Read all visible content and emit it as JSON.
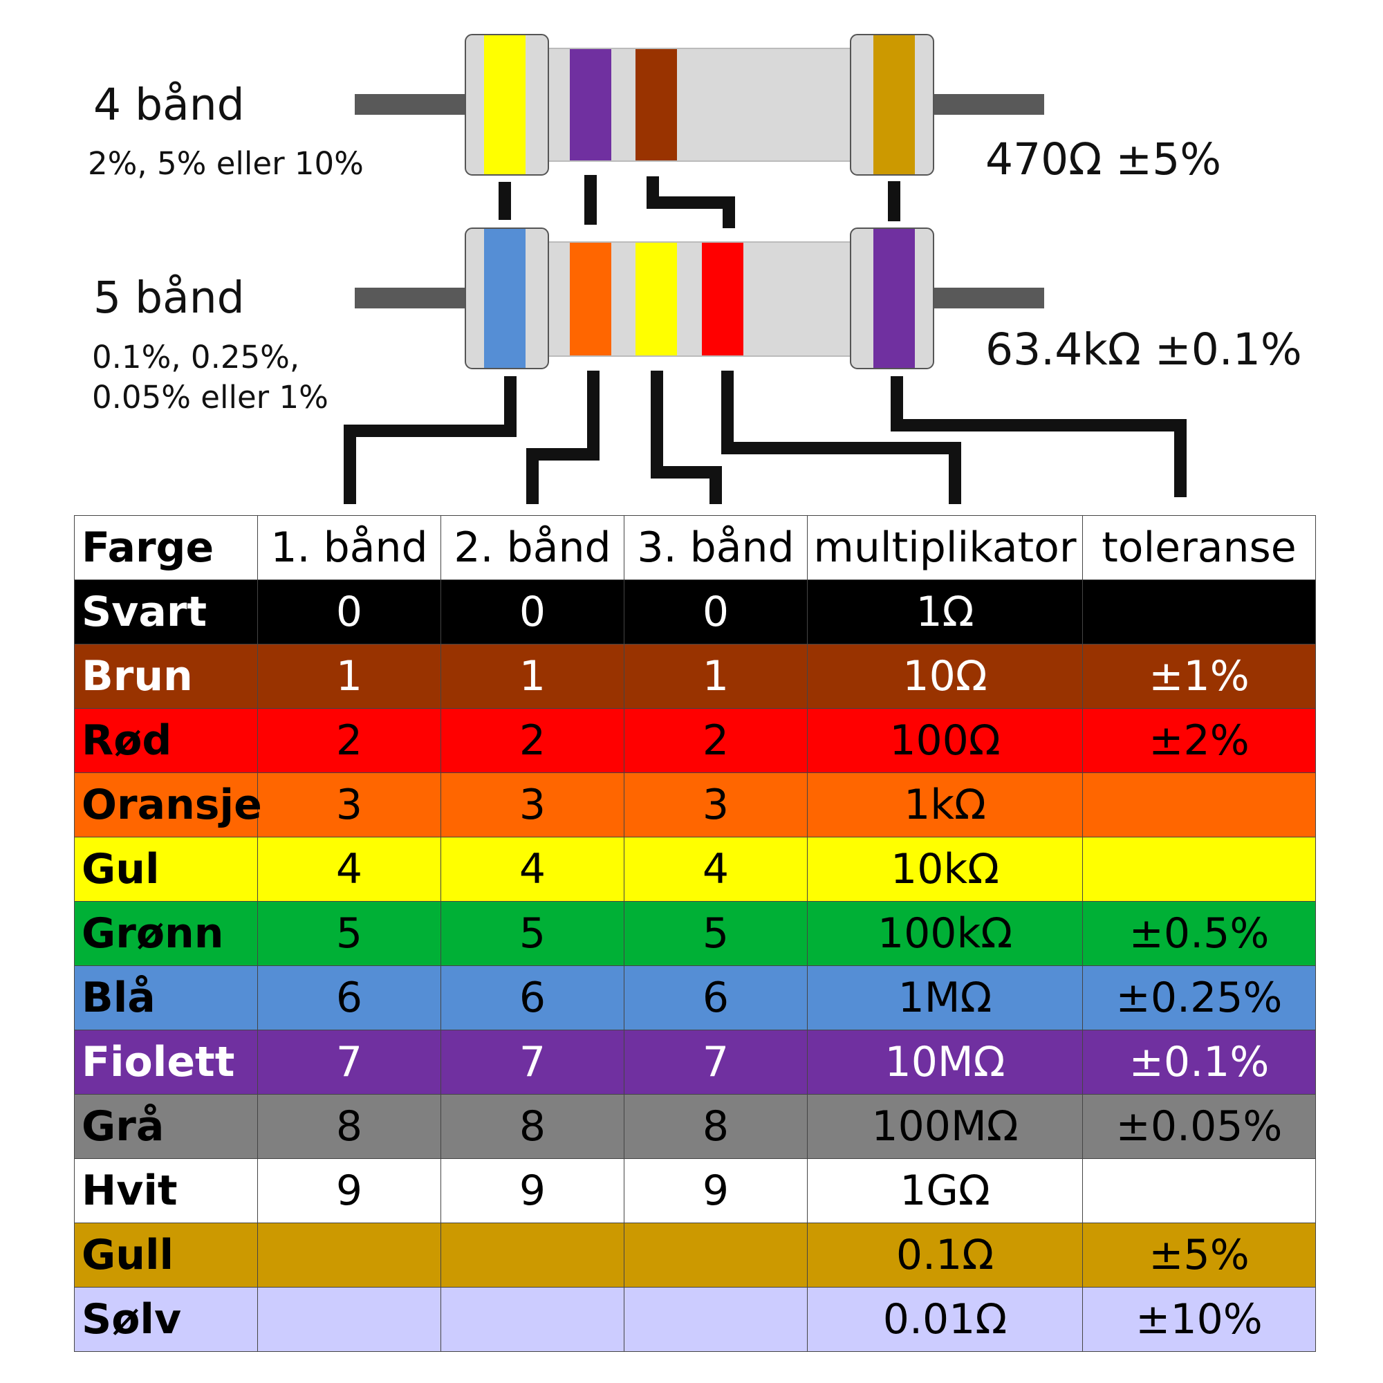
{
  "resistor4": {
    "title": "4 bånd",
    "subtitle": "2%, 5% eller 10%",
    "value": "470Ω ±5%",
    "bands": [
      "#ffff00",
      "#7030a0",
      "#993300",
      "#cc9900"
    ]
  },
  "resistor5": {
    "title": "5 bånd",
    "subtitle_line1": "0.1%, 0.25%,",
    "subtitle_line2": "0.05% eller 1%",
    "value": "63.4kΩ ±0.1%",
    "bands": [
      "#558ed5",
      "#ff6600",
      "#ffff00",
      "#ff0000",
      "#7030a0"
    ]
  },
  "colors": {
    "body": "#d9d9d9",
    "lead": "#595959",
    "connector": "#111111"
  },
  "table": {
    "headers": [
      "Farge",
      "1. bånd",
      "2. bånd",
      "3. bånd",
      "multiplikator",
      "toleranse"
    ],
    "rows": [
      {
        "name": "Svart",
        "bg": "#000000",
        "fg": "#ffffff",
        "b1": "0",
        "b2": "0",
        "b3": "0",
        "mult": "1Ω",
        "tol": ""
      },
      {
        "name": "Brun",
        "bg": "#993300",
        "fg": "#ffffff",
        "b1": "1",
        "b2": "1",
        "b3": "1",
        "mult": "10Ω",
        "tol": "±1%"
      },
      {
        "name": "Rød",
        "bg": "#ff0000",
        "fg": "#000000",
        "b1": "2",
        "b2": "2",
        "b3": "2",
        "mult": "100Ω",
        "tol": "±2%"
      },
      {
        "name": "Oransje",
        "bg": "#ff6600",
        "fg": "#000000",
        "b1": "3",
        "b2": "3",
        "b3": "3",
        "mult": "1kΩ",
        "tol": ""
      },
      {
        "name": "Gul",
        "bg": "#ffff00",
        "fg": "#000000",
        "b1": "4",
        "b2": "4",
        "b3": "4",
        "mult": "10kΩ",
        "tol": ""
      },
      {
        "name": "Grønn",
        "bg": "#00b036",
        "fg": "#000000",
        "b1": "5",
        "b2": "5",
        "b3": "5",
        "mult": "100kΩ",
        "tol": "±0.5%"
      },
      {
        "name": "Blå",
        "bg": "#558ed5",
        "fg": "#000000",
        "b1": "6",
        "b2": "6",
        "b3": "6",
        "mult": "1MΩ",
        "tol": "±0.25%"
      },
      {
        "name": "Fiolett",
        "bg": "#7030a0",
        "fg": "#ffffff",
        "b1": "7",
        "b2": "7",
        "b3": "7",
        "mult": "10MΩ",
        "tol": "±0.1%"
      },
      {
        "name": "Grå",
        "bg": "#808080",
        "fg": "#000000",
        "b1": "8",
        "b2": "8",
        "b3": "8",
        "mult": "100MΩ",
        "tol": "±0.05%"
      },
      {
        "name": "Hvit",
        "bg": "#ffffff",
        "fg": "#000000",
        "b1": "9",
        "b2": "9",
        "b3": "9",
        "mult": "1GΩ",
        "tol": ""
      },
      {
        "name": "Gull",
        "bg": "#cc9900",
        "fg": "#000000",
        "b1": "",
        "b2": "",
        "b3": "",
        "mult": "0.1Ω",
        "tol": "±5%"
      },
      {
        "name": "Sølv",
        "bg": "#ccccff",
        "fg": "#000000",
        "b1": "",
        "b2": "",
        "b3": "",
        "mult": "0.01Ω",
        "tol": "±10%"
      }
    ]
  }
}
